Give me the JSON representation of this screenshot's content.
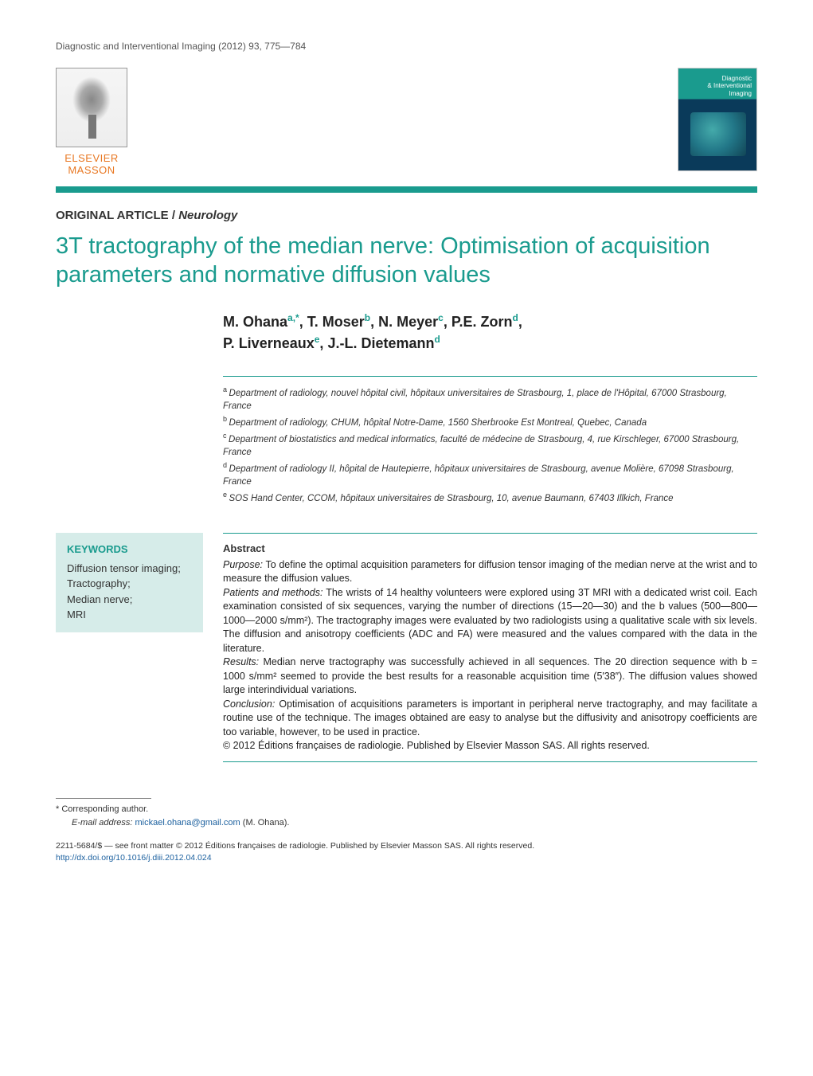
{
  "journal_ref": "Diagnostic and Interventional Imaging (2012) 93, 775—784",
  "publisher_logo": {
    "line1": "ELSEVIER",
    "line2": "MASSON"
  },
  "journal_cover": {
    "title_line1": "Diagnostic",
    "title_line2": "& Interventional",
    "title_line3": "Imaging"
  },
  "teal_bar_color": "#1a9b8e",
  "article_type": {
    "label": "ORIGINAL ARTICLE",
    "category": "Neurology"
  },
  "title": "3T tractography of the median nerve: Optimisation of acquisition parameters and normative diffusion values",
  "authors": [
    {
      "name": "M. Ohana",
      "sup": "a,*"
    },
    {
      "name": "T. Moser",
      "sup": "b"
    },
    {
      "name": "N. Meyer",
      "sup": "c"
    },
    {
      "name": "P.E. Zorn",
      "sup": "d"
    },
    {
      "name": "P. Liverneaux",
      "sup": "e"
    },
    {
      "name": "J.-L. Dietemann",
      "sup": "d"
    }
  ],
  "affiliations": [
    {
      "sup": "a",
      "text": "Department of radiology, nouvel hôpital civil, hôpitaux universitaires de Strasbourg, 1, place de l'Hôpital, 67000 Strasbourg, France"
    },
    {
      "sup": "b",
      "text": "Department of radiology, CHUM, hôpital Notre-Dame, 1560 Sherbrooke Est Montreal, Quebec, Canada"
    },
    {
      "sup": "c",
      "text": "Department of biostatistics and medical informatics, faculté de médecine de Strasbourg, 4, rue Kirschleger, 67000 Strasbourg, France"
    },
    {
      "sup": "d",
      "text": "Department of radiology II, hôpital de Hautepierre, hôpitaux universitaires de Strasbourg, avenue Molière, 67098 Strasbourg, France"
    },
    {
      "sup": "e",
      "text": "SOS Hand Center, CCOM, hôpitaux universitaires de Strasbourg, 10, avenue Baumann, 67403 Illkich, France"
    }
  ],
  "keywords": {
    "title": "KEYWORDS",
    "items": [
      "Diffusion tensor imaging;",
      "Tractography;",
      "Median nerve;",
      "MRI"
    ]
  },
  "abstract": {
    "heading": "Abstract",
    "purpose_label": "Purpose:",
    "purpose": "To define the optimal acquisition parameters for diffusion tensor imaging of the median nerve at the wrist and to measure the diffusion values.",
    "methods_label": "Patients and methods:",
    "methods": "The wrists of 14 healthy volunteers were explored using 3T MRI with a dedicated wrist coil. Each examination consisted of six sequences, varying the number of directions (15—20—30) and the b values (500—800—1000—2000 s/mm²). The tractography images were evaluated by two radiologists using a qualitative scale with six levels. The diffusion and anisotropy coefficients (ADC and FA) were measured and the values compared with the data in the literature.",
    "results_label": "Results:",
    "results": "Median nerve tractography was successfully achieved in all sequences. The 20 direction sequence with b = 1000 s/mm² seemed to provide the best results for a reasonable acquisition time (5′38″). The diffusion values showed large interindividual variations.",
    "conclusion_label": "Conclusion:",
    "conclusion": "Optimisation of acquisitions parameters is important in peripheral nerve tractography, and may facilitate a routine use of the technique. The images obtained are easy to analyse but the diffusivity and anisotropy coefficients are too variable, however, to be used in practice.",
    "copyright": "© 2012 Éditions françaises de radiologie. Published by Elsevier Masson SAS. All rights reserved."
  },
  "footer": {
    "corresponding": "* Corresponding author.",
    "email_label": "E-mail address:",
    "email": "mickael.ohana@gmail.com",
    "email_name": "(M. Ohana).",
    "issn_line": "2211-5684/$ — see front matter © 2012 Éditions françaises de radiologie. Published by Elsevier Masson SAS. All rights reserved.",
    "doi": "http://dx.doi.org/10.1016/j.diii.2012.04.024"
  },
  "colors": {
    "teal": "#1a9b8e",
    "orange": "#e87722",
    "link_blue": "#1a5f9e",
    "keywords_bg": "#d6ece9"
  }
}
